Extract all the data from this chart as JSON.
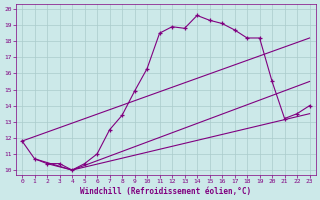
{
  "background_color": "#cce9e9",
  "line_color": "#800080",
  "grid_color": "#aacccc",
  "xlabel": "Windchill (Refroidissement éolien,°C)",
  "xlim": [
    -0.5,
    23.5
  ],
  "ylim": [
    9.7,
    20.3
  ],
  "xticks": [
    0,
    1,
    2,
    3,
    4,
    5,
    6,
    7,
    8,
    9,
    10,
    11,
    12,
    13,
    14,
    15,
    16,
    17,
    18,
    19,
    20,
    21,
    22,
    23
  ],
  "yticks": [
    10,
    11,
    12,
    13,
    14,
    15,
    16,
    17,
    18,
    19,
    20
  ],
  "main_x": [
    0,
    1,
    2,
    3,
    4,
    5,
    6,
    7,
    8,
    9,
    10,
    11,
    12,
    13,
    14,
    15,
    16,
    17,
    18,
    19,
    20,
    21,
    22,
    23
  ],
  "main_y": [
    11.8,
    10.7,
    10.4,
    10.4,
    10.0,
    10.4,
    11.0,
    12.5,
    13.4,
    14.9,
    16.3,
    18.5,
    18.9,
    18.8,
    19.6,
    19.3,
    19.1,
    18.7,
    18.2,
    18.2,
    15.5,
    13.2,
    13.5,
    14.0
  ],
  "line2_x": [
    0,
    23
  ],
  "line2_y": [
    11.8,
    18.2
  ],
  "line3_x": [
    1,
    4,
    23
  ],
  "line3_y": [
    10.7,
    10.0,
    15.5
  ],
  "line4_x": [
    2,
    4,
    23
  ],
  "line4_y": [
    10.4,
    10.0,
    13.5
  ]
}
